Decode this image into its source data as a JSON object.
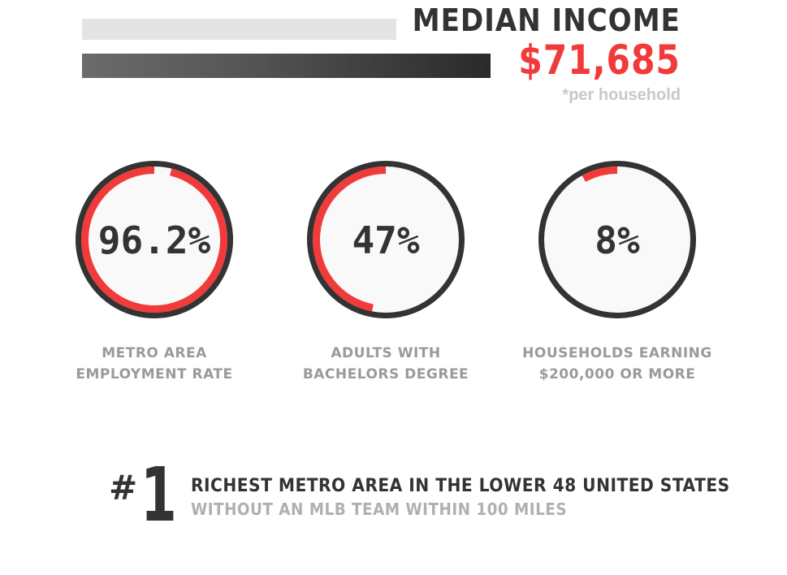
{
  "header": {
    "title": "MEDIAN INCOME",
    "value": "$71,685",
    "note": "*per household"
  },
  "colors": {
    "accent": "#f13a3a",
    "dark": "#333333",
    "muted": "#9a9a9a"
  },
  "stats": [
    {
      "value": "96.2%",
      "fraction": 0.962,
      "label_line1": "METRO AREA",
      "label_line2": "EMPLOYMENT RATE"
    },
    {
      "value": "47%",
      "fraction": 0.47,
      "label_line1": "ADULTS WITH",
      "label_line2": "BACHELORS DEGREE"
    },
    {
      "value": "8%",
      "fraction": 0.08,
      "label_line1": "HOUSEHOLDS EARNING",
      "label_line2": "$200,000 OR MORE"
    }
  ],
  "rank": {
    "hash": "#",
    "number": "1",
    "line1": "RICHEST METRO AREA IN THE LOWER 48 UNITED STATES",
    "line2": "WITHOUT AN MLB TEAM WITHIN 100 MILES"
  }
}
